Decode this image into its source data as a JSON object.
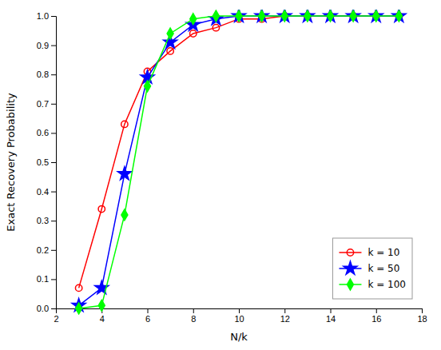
{
  "chart_data": {
    "type": "line",
    "xlabel": "N/k",
    "ylabel": "Exact Recovery Probability",
    "x": [
      3,
      4,
      5,
      6,
      7,
      8,
      9,
      10,
      11,
      12,
      13,
      14,
      15,
      16,
      17
    ],
    "series": [
      {
        "name": "k = 10",
        "color": "#ff0000",
        "marker": "circle",
        "values": [
          0.07,
          0.34,
          0.63,
          0.81,
          0.88,
          0.94,
          0.96,
          0.99,
          0.99,
          1.0,
          1.0,
          1.0,
          1.0,
          1.0,
          1.0
        ]
      },
      {
        "name": "k = 50",
        "color": "#0000ff",
        "marker": "star",
        "values": [
          0.01,
          0.07,
          0.46,
          0.79,
          0.91,
          0.97,
          0.99,
          1.0,
          1.0,
          1.0,
          1.0,
          1.0,
          1.0,
          1.0,
          1.0
        ]
      },
      {
        "name": "k = 100",
        "color": "#00ff00",
        "marker": "diamond",
        "values": [
          0.0,
          0.01,
          0.32,
          0.76,
          0.94,
          0.99,
          1.0,
          1.0,
          1.0,
          1.0,
          1.0,
          1.0,
          1.0,
          1.0,
          1.0
        ]
      }
    ],
    "xlim": [
      2,
      18
    ],
    "ylim": [
      0,
      1.0
    ],
    "xticks": [
      2,
      4,
      6,
      8,
      10,
      12,
      14,
      16,
      18
    ],
    "yticks": [
      {
        "value": 0,
        "label": "0.0"
      },
      0.1,
      0.2,
      0.3,
      0.4,
      0.5,
      0.6,
      0.7,
      0.8,
      0.9,
      {
        "value": 1.0,
        "label": "1.0"
      }
    ],
    "grid": false,
    "legend": "lower right"
  }
}
